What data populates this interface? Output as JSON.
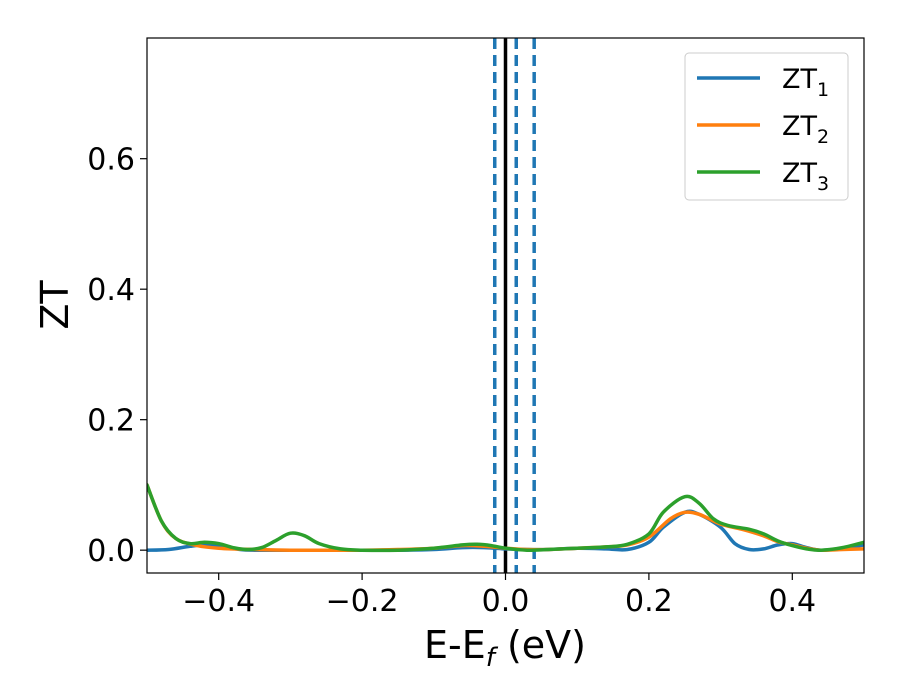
{
  "chart_data": {
    "type": "line",
    "xlabel": {
      "main": "E-E",
      "sub": "f",
      "suffix": " (eV)"
    },
    "ylabel": "ZT",
    "xlim": [
      -0.5,
      0.5
    ],
    "ylim": [
      -0.035,
      0.785
    ],
    "xticks": [
      {
        "value": -0.4,
        "label": "−0.4"
      },
      {
        "value": -0.2,
        "label": "−0.2"
      },
      {
        "value": 0.0,
        "label": "0.0"
      },
      {
        "value": 0.2,
        "label": "0.2"
      },
      {
        "value": 0.4,
        "label": "0.4"
      }
    ],
    "yticks": [
      {
        "value": 0.0,
        "label": "0.0"
      },
      {
        "value": 0.2,
        "label": "0.2"
      },
      {
        "value": 0.4,
        "label": "0.4"
      },
      {
        "value": 0.6,
        "label": "0.6"
      }
    ],
    "grid": false,
    "legend_position": "top-right",
    "vertical_lines": [
      {
        "x": 0.0,
        "style": "solid",
        "color": "#000000"
      },
      {
        "x": -0.015,
        "style": "dashed",
        "color": "#1f77b4"
      },
      {
        "x": 0.015,
        "style": "dashed",
        "color": "#1f77b4"
      },
      {
        "x": 0.04,
        "style": "dashed",
        "color": "#1f77b4"
      }
    ],
    "series": [
      {
        "name": "ZT",
        "name_sub": "1",
        "color": "#1f77b4",
        "points": [
          [
            -0.5,
            0.0
          ],
          [
            -0.47,
            0.001
          ],
          [
            -0.44,
            0.006
          ],
          [
            -0.42,
            0.008
          ],
          [
            -0.4,
            0.006
          ],
          [
            -0.37,
            0.001
          ],
          [
            -0.35,
            0.0
          ],
          [
            -0.3,
            0.0
          ],
          [
            -0.25,
            0.0
          ],
          [
            -0.2,
            0.0
          ],
          [
            -0.15,
            0.0
          ],
          [
            -0.1,
            0.001
          ],
          [
            -0.06,
            0.004
          ],
          [
            -0.03,
            0.004
          ],
          [
            0.0,
            0.002
          ],
          [
            0.03,
            0.001
          ],
          [
            0.06,
            0.001
          ],
          [
            0.1,
            0.003
          ],
          [
            0.14,
            0.002
          ],
          [
            0.17,
            0.001
          ],
          [
            0.2,
            0.012
          ],
          [
            0.22,
            0.035
          ],
          [
            0.25,
            0.058
          ],
          [
            0.27,
            0.055
          ],
          [
            0.3,
            0.035
          ],
          [
            0.32,
            0.01
          ],
          [
            0.34,
            0.001
          ],
          [
            0.36,
            0.002
          ],
          [
            0.38,
            0.008
          ],
          [
            0.4,
            0.01
          ],
          [
            0.42,
            0.004
          ],
          [
            0.44,
            0.0
          ],
          [
            0.47,
            0.003
          ],
          [
            0.5,
            0.008
          ]
        ]
      },
      {
        "name": "ZT",
        "name_sub": "2",
        "color": "#ff7f0e",
        "points": [
          [
            -0.5,
            0.1
          ],
          [
            -0.48,
            0.045
          ],
          [
            -0.46,
            0.018
          ],
          [
            -0.43,
            0.007
          ],
          [
            -0.4,
            0.003
          ],
          [
            -0.35,
            0.001
          ],
          [
            -0.3,
            0.0
          ],
          [
            -0.25,
            0.0
          ],
          [
            -0.2,
            0.0
          ],
          [
            -0.15,
            0.001
          ],
          [
            -0.1,
            0.003
          ],
          [
            -0.06,
            0.007
          ],
          [
            -0.03,
            0.006
          ],
          [
            0.0,
            0.003
          ],
          [
            0.03,
            0.001
          ],
          [
            0.06,
            0.001
          ],
          [
            0.1,
            0.003
          ],
          [
            0.14,
            0.005
          ],
          [
            0.17,
            0.008
          ],
          [
            0.2,
            0.02
          ],
          [
            0.23,
            0.048
          ],
          [
            0.25,
            0.058
          ],
          [
            0.27,
            0.055
          ],
          [
            0.3,
            0.04
          ],
          [
            0.33,
            0.032
          ],
          [
            0.36,
            0.022
          ],
          [
            0.38,
            0.013
          ],
          [
            0.4,
            0.008
          ],
          [
            0.42,
            0.003
          ],
          [
            0.44,
            0.0
          ],
          [
            0.47,
            0.001
          ],
          [
            0.5,
            0.002
          ]
        ]
      },
      {
        "name": "ZT",
        "name_sub": "3",
        "color": "#2ca02c",
        "points": [
          [
            -0.5,
            0.1
          ],
          [
            -0.48,
            0.045
          ],
          [
            -0.46,
            0.018
          ],
          [
            -0.44,
            0.01
          ],
          [
            -0.42,
            0.012
          ],
          [
            -0.4,
            0.01
          ],
          [
            -0.38,
            0.004
          ],
          [
            -0.36,
            0.001
          ],
          [
            -0.34,
            0.004
          ],
          [
            -0.32,
            0.015
          ],
          [
            -0.3,
            0.026
          ],
          [
            -0.28,
            0.022
          ],
          [
            -0.26,
            0.01
          ],
          [
            -0.23,
            0.002
          ],
          [
            -0.2,
            0.0
          ],
          [
            -0.15,
            0.0
          ],
          [
            -0.1,
            0.003
          ],
          [
            -0.06,
            0.008
          ],
          [
            -0.04,
            0.009
          ],
          [
            -0.02,
            0.007
          ],
          [
            0.0,
            0.003
          ],
          [
            0.03,
            0.0
          ],
          [
            0.06,
            0.001
          ],
          [
            0.1,
            0.003
          ],
          [
            0.14,
            0.005
          ],
          [
            0.17,
            0.009
          ],
          [
            0.2,
            0.025
          ],
          [
            0.22,
            0.058
          ],
          [
            0.25,
            0.082
          ],
          [
            0.27,
            0.072
          ],
          [
            0.29,
            0.048
          ],
          [
            0.31,
            0.038
          ],
          [
            0.34,
            0.032
          ],
          [
            0.36,
            0.025
          ],
          [
            0.38,
            0.014
          ],
          [
            0.4,
            0.007
          ],
          [
            0.42,
            0.002
          ],
          [
            0.44,
            0.0
          ],
          [
            0.47,
            0.004
          ],
          [
            0.5,
            0.012
          ]
        ]
      }
    ]
  }
}
